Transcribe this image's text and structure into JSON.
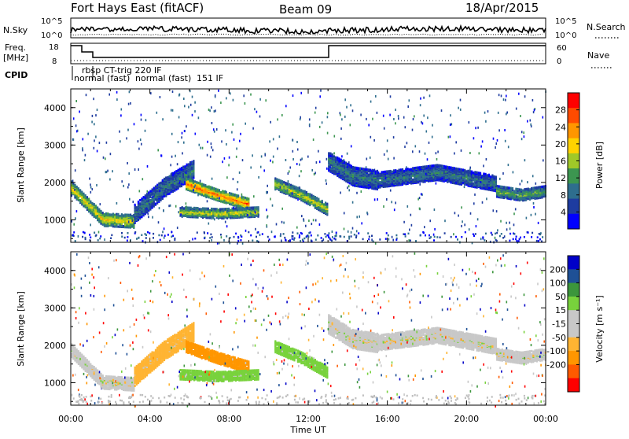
{
  "header": {
    "title": "Fort Hays East (fitACF)",
    "beam": "Beam 09",
    "date": "18/Apr/2015"
  },
  "top_panels": {
    "nsky_label": "N.Sky",
    "nsky_ticks": [
      "10^5",
      "10^0"
    ],
    "nsearch_label": "N.Search",
    "nsearch_ticks": [
      "10^5",
      "10^0"
    ],
    "freq_label_line1": "Freq.",
    "freq_label_line2": "[MHz]",
    "freq_ticks": [
      "18",
      "8"
    ],
    "nave_label": "Nave",
    "nave_ticks": [
      "60",
      "0"
    ],
    "cpid_label": "CPID",
    "cpid_entries": [
      "rbsp CT-trig 220 IF",
      "normal (fast)",
      "normal (fast)",
      "151 IF"
    ]
  },
  "colors": {
    "power": [
      "#0000ff",
      "#1e3ca0",
      "#2e6e8e",
      "#3c9650",
      "#a0c828",
      "#ffd200",
      "#ff9600",
      "#ff4b00",
      "#ff0000"
    ],
    "velocity": [
      "#ff0000",
      "#ff5a00",
      "#ff9600",
      "#ffb432",
      "#c8c8c8",
      "#c8c8c8",
      "#78d23c",
      "#3c963c",
      "#1e5096",
      "#0000c8"
    ],
    "gray": "#bebebe"
  },
  "chart_data": [
    {
      "type": "heatmap",
      "panel": "power",
      "ylabel": "Slant Range [km]",
      "xlabel": "Time UT",
      "x_ticks": [
        "00:00",
        "04:00",
        "08:00",
        "12:00",
        "16:00",
        "20:00",
        "00:00"
      ],
      "y_ticks": [
        "1000",
        "2000",
        "3000",
        "4000"
      ],
      "xlim_hours": [
        0,
        24
      ],
      "ylim_km": [
        400,
        4500
      ],
      "colorbar_label": "Power [dB]",
      "colorbar_ticks": [
        "4",
        "8",
        "12",
        "16",
        "20",
        "24",
        "28"
      ],
      "colorbar_range": [
        0,
        32
      ],
      "echo_bands": [
        {
          "t_start": 0.0,
          "t_end": 3.2,
          "range_km": [
            1900,
            1050,
            1000
          ],
          "width_km": 350,
          "power_db": 20
        },
        {
          "t_start": 3.2,
          "t_end": 6.2,
          "range_km": [
            1200,
            1900,
            2400
          ],
          "width_km": 500,
          "power_db": 10
        },
        {
          "t_start": 5.8,
          "t_end": 9.0,
          "range_km": [
            2000,
            1700,
            1450
          ],
          "width_km": 300,
          "power_db": 26
        },
        {
          "t_start": 5.5,
          "t_end": 9.5,
          "range_km": [
            1250,
            1200,
            1250
          ],
          "width_km": 250,
          "power_db": 18
        },
        {
          "t_start": 10.3,
          "t_end": 13.0,
          "range_km": [
            2000,
            1700,
            1300
          ],
          "width_km": 300,
          "power_db": 18
        },
        {
          "t_start": 13.0,
          "t_end": 15.5,
          "range_km": [
            2600,
            2200,
            2100
          ],
          "width_km": 500,
          "power_db": 10
        },
        {
          "t_start": 15.5,
          "t_end": 21.5,
          "range_km": [
            2100,
            2300,
            2000
          ],
          "width_km": 400,
          "power_db": 10
        },
        {
          "t_start": 21.5,
          "t_end": 24.0,
          "range_km": [
            1800,
            1700,
            1800
          ],
          "width_km": 300,
          "power_db": 14
        }
      ]
    },
    {
      "type": "heatmap",
      "panel": "velocity",
      "ylabel": "Slant Range [km]",
      "xlabel": "Time UT",
      "x_ticks": [
        "00:00",
        "04:00",
        "08:00",
        "12:00",
        "16:00",
        "20:00",
        "00:00"
      ],
      "y_ticks": [
        "1000",
        "2000",
        "3000",
        "4000"
      ],
      "xlim_hours": [
        0,
        24
      ],
      "ylim_km": [
        400,
        4500
      ],
      "colorbar_label": "Velocity [m s⁻¹]",
      "colorbar_ticks": [
        "200",
        "100",
        "50",
        "15",
        "-15",
        "-50",
        "-100",
        "-200"
      ],
      "echo_bands": [
        {
          "t_start": 0.0,
          "t_end": 3.2,
          "range_km": [
            1900,
            1050,
            1000
          ],
          "width_km": 350,
          "velocity": 0
        },
        {
          "t_start": 3.2,
          "t_end": 6.2,
          "range_km": [
            1200,
            1900,
            2400
          ],
          "width_km": 500,
          "velocity": -30
        },
        {
          "t_start": 5.8,
          "t_end": 9.0,
          "range_km": [
            2000,
            1700,
            1450
          ],
          "width_km": 300,
          "velocity": -80
        },
        {
          "t_start": 5.5,
          "t_end": 9.5,
          "range_km": [
            1250,
            1200,
            1250
          ],
          "width_km": 250,
          "velocity": 30
        },
        {
          "t_start": 10.3,
          "t_end": 13.0,
          "range_km": [
            2000,
            1700,
            1300
          ],
          "width_km": 300,
          "velocity": 30
        },
        {
          "t_start": 13.0,
          "t_end": 15.5,
          "range_km": [
            2600,
            2200,
            2100
          ],
          "width_km": 500,
          "velocity": 0
        },
        {
          "t_start": 15.5,
          "t_end": 21.5,
          "range_km": [
            2100,
            2300,
            2000
          ],
          "width_km": 400,
          "velocity": 0
        },
        {
          "t_start": 21.5,
          "t_end": 24.0,
          "range_km": [
            1800,
            1700,
            1800
          ],
          "width_km": 300,
          "velocity": 0
        }
      ]
    }
  ]
}
